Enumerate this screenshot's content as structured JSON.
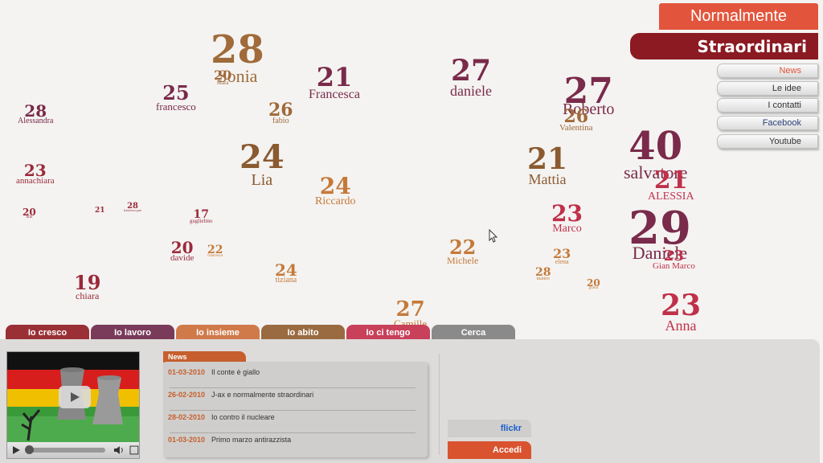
{
  "brand": {
    "line1": "Normalmente",
    "line2": "Straordinari"
  },
  "side_menu": [
    {
      "label": "News",
      "color": "#e2553c"
    },
    {
      "label": "Le idee",
      "color": "#333333"
    },
    {
      "label": "I contatti",
      "color": "#333333"
    },
    {
      "label": "Facebook",
      "color": "#2a3f7a"
    },
    {
      "label": "Youtube",
      "color": "#333333"
    }
  ],
  "people": [
    {
      "age": "28",
      "name": "Sonia",
      "color": "#a06a3a"
    },
    {
      "age": "21",
      "name": "Francesca",
      "color": "#7a2a4a"
    },
    {
      "age": "27",
      "name": "daniele",
      "color": "#7a2a4a"
    },
    {
      "age": "27",
      "name": "Roberto",
      "color": "#7a2a4a"
    },
    {
      "age": "25",
      "name": "francesco",
      "color": "#7a2a4a"
    },
    {
      "age": "28",
      "name": "Alessandra",
      "color": "#7a2a4a"
    },
    {
      "age": "26",
      "name": "fabio",
      "color": "#a06a3a"
    },
    {
      "age": "24",
      "name": "Lia",
      "color": "#8a5a30"
    },
    {
      "age": "21",
      "name": "Mattia",
      "color": "#8a5a30"
    },
    {
      "age": "40",
      "name": "salvatore",
      "color": "#7a2a4a"
    },
    {
      "age": "23",
      "name": "annachiara",
      "color": "#9a2a3a"
    },
    {
      "age": "24",
      "name": "Riccardo",
      "color": "#c57a3a"
    },
    {
      "age": "21",
      "name": "ALESSIA",
      "color": "#c0304a"
    },
    {
      "age": "23",
      "name": "Marco",
      "color": "#c0304a"
    },
    {
      "age": "29",
      "name": "Daniele",
      "color": "#7a2a4a"
    },
    {
      "age": "20",
      "name": "davide",
      "color": "#9a2a3a"
    },
    {
      "age": "22",
      "name": "Michele",
      "color": "#c57a3a"
    },
    {
      "age": "24",
      "name": "tiziana",
      "color": "#c57a3a"
    },
    {
      "age": "19",
      "name": "chiara",
      "color": "#9a2a3a"
    },
    {
      "age": "23",
      "name": "Anna",
      "color": "#c0304a"
    },
    {
      "age": "27",
      "name": "Camille",
      "color": "#c57a3a"
    },
    {
      "age": "23",
      "name": "Gian Marco",
      "color": "#c0304a"
    },
    {
      "age": "26",
      "name": "Valentina",
      "color": "#a06a3a"
    },
    {
      "age": "23",
      "name": "elena",
      "color": "#c57a3a"
    },
    {
      "age": "28",
      "name": "matteo",
      "color": "#c57a3a"
    },
    {
      "age": "20",
      "name": "giulia",
      "color": "#c57a3a"
    },
    {
      "age": "17",
      "name": "guglielmo",
      "color": "#9a2a3a"
    },
    {
      "age": "22",
      "name": "francesco",
      "color": "#c57a3a"
    },
    {
      "age": "20",
      "name": "lillo",
      "color": "#9a2a3a"
    },
    {
      "age": "28",
      "name": "francesco pao",
      "color": "#9a2a3a"
    },
    {
      "age": "21",
      "name": "",
      "color": "#9a2a3a"
    },
    {
      "age": "20",
      "name": "Mara",
      "color": "#a06a3a"
    }
  ],
  "tabs": [
    {
      "label": "Io cresco",
      "color": "#9a2f36"
    },
    {
      "label": "Io lavoro",
      "color": "#7a3a5a"
    },
    {
      "label": "Io insieme",
      "color": "#d07a4a"
    },
    {
      "label": "Io abito",
      "color": "#9a6a40"
    },
    {
      "label": "Io ci tengo",
      "color": "#c8405a"
    },
    {
      "label": "Cerca",
      "color": "#8a8a8a"
    }
  ],
  "news": {
    "title": "News",
    "items": [
      {
        "date": "01-03-2010",
        "text": "Il conte è giallo"
      },
      {
        "date": "26-02-2010",
        "text": "J-ax e normalmente straordinari"
      },
      {
        "date": "28-02-2010",
        "text": "Io contro il nucleare"
      },
      {
        "date": "01-03-2010",
        "text": "Primo marzo antirazzista"
      }
    ]
  },
  "buttons": {
    "flickr": "flickr",
    "accedi": "Accedi"
  },
  "icons": {
    "play": "play-icon",
    "cursor": "mouse-cursor-icon"
  }
}
